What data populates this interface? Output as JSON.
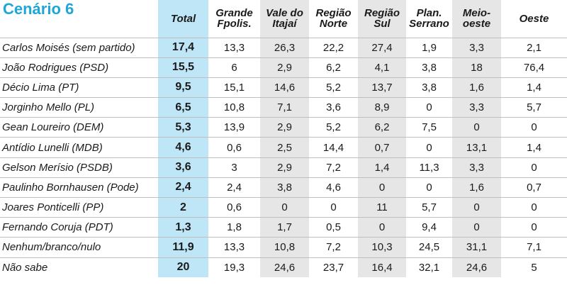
{
  "chart_data": {
    "type": "table",
    "title": "Cenário 6",
    "columns": [
      "Total",
      "Grande Fpolis.",
      "Vale do Itajaí",
      "Região Norte",
      "Região Sul",
      "Plan. Serrano",
      "Meio-oeste",
      "Oeste"
    ],
    "header_lines": [
      [
        "Total"
      ],
      [
        "Grande",
        "Fpolis."
      ],
      [
        "Vale do",
        "Itajaí"
      ],
      [
        "Região",
        "Norte"
      ],
      [
        "Região",
        "Sul"
      ],
      [
        "Plan.",
        "Serrano"
      ],
      [
        "Meio-",
        "oeste"
      ],
      [
        "Oeste"
      ]
    ],
    "rows": [
      {
        "name": "Carlos Moisés (sem partido)",
        "values": [
          "17,4",
          "13,3",
          "26,3",
          "22,2",
          "27,4",
          "1,9",
          "3,3",
          "2,1"
        ]
      },
      {
        "name": "João Rodrigues (PSD)",
        "values": [
          "15,5",
          "6",
          "2,9",
          "6,2",
          "4,1",
          "3,8",
          "18",
          "76,4"
        ]
      },
      {
        "name": "Décio Lima (PT)",
        "values": [
          "9,5",
          "15,1",
          "14,6",
          "5,2",
          "13,7",
          "3,8",
          "1,6",
          "1,4"
        ]
      },
      {
        "name": "Jorginho Mello (PL)",
        "values": [
          "6,5",
          "10,8",
          "7,1",
          "3,6",
          "8,9",
          "0",
          "3,3",
          "5,7"
        ]
      },
      {
        "name": "Gean Loureiro (DEM)",
        "values": [
          "5,3",
          "13,9",
          "2,9",
          "5,2",
          "6,2",
          "7,5",
          "0",
          "0"
        ]
      },
      {
        "name": "Antídio Lunelli (MDB)",
        "values": [
          "4,6",
          "0,6",
          "2,5",
          "14,4",
          "0,7",
          "0",
          "13,1",
          "1,4"
        ]
      },
      {
        "name": "Gelson Merísio (PSDB)",
        "values": [
          "3,6",
          "3",
          "2,9",
          "7,2",
          "1,4",
          "11,3",
          "3,3",
          "0"
        ]
      },
      {
        "name": "Paulinho Bornhausen (Pode)",
        "values": [
          "2,4",
          "2,4",
          "3,8",
          "4,6",
          "0",
          "0",
          "1,6",
          "0,7"
        ]
      },
      {
        "name": "Joares Ponticelli (PP)",
        "values": [
          "2",
          "0,6",
          "0",
          "0",
          "11",
          "5,7",
          "0",
          "0"
        ]
      },
      {
        "name": "Fernando Coruja (PDT)",
        "values": [
          "1,3",
          "1,8",
          "1,7",
          "0,5",
          "0",
          "9,4",
          "0",
          "0"
        ]
      },
      {
        "name": "Nenhum/branco/nulo",
        "values": [
          "11,9",
          "13,3",
          "10,8",
          "7,2",
          "10,3",
          "24,5",
          "31,1",
          "7,1"
        ]
      },
      {
        "name": "Não sabe",
        "values": [
          "20",
          "19,3",
          "24,6",
          "23,7",
          "16,4",
          "32,1",
          "24,6",
          "5"
        ]
      }
    ]
  },
  "colors": {
    "title": "#1fa5d8",
    "total_column": "#bfe6f7",
    "shaded_column": "#e6e6e6",
    "row_rule": "#bfbfbf"
  }
}
